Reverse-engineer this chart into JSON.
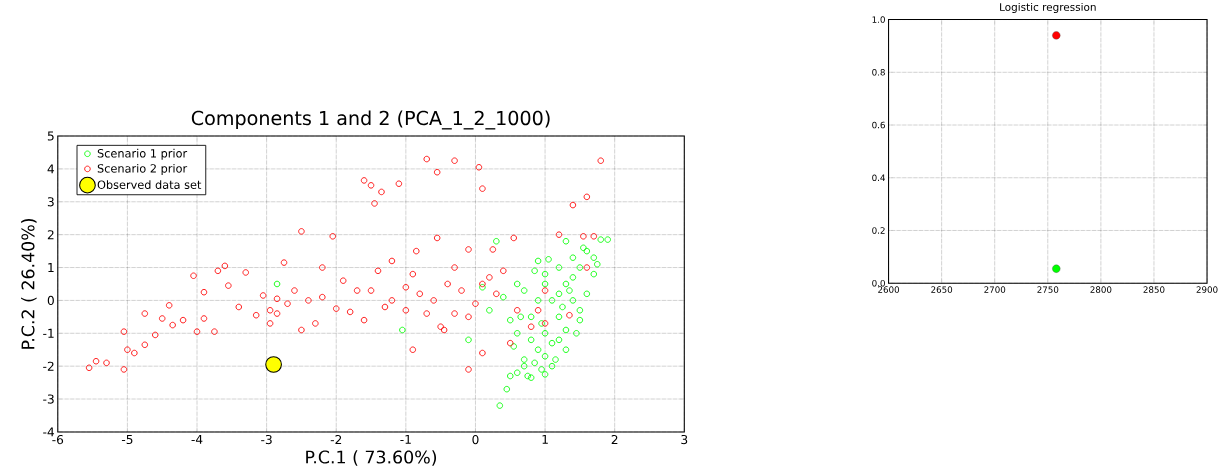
{
  "chart_data": [
    {
      "type": "scatter",
      "title": "Components 1 and 2 (PCA_1_2_1000)",
      "xlabel": "P.C.1 (   73.60%)",
      "ylabel": "P.C.2 (   26.40%)",
      "xlim": [
        -6,
        3
      ],
      "xticks": [
        -6,
        -5,
        -4,
        -3,
        -2,
        -1,
        0,
        1,
        2,
        3
      ],
      "ylim": [
        -4,
        5
      ],
      "yticks": [
        -4,
        -3,
        -2,
        -1,
        0,
        1,
        2,
        3,
        4,
        5
      ],
      "grid": true,
      "legend": "top left",
      "marker": "circle",
      "series": [
        {
          "name": "Scenario 1 prior",
          "color": "#00ff00",
          "x": [
            0.35,
            0.45,
            0.5,
            0.6,
            0.8,
            1.0,
            1.1,
            0.7,
            0.6,
            0.8,
            0.9,
            1.0,
            1.2,
            1.4,
            1.6,
            1.9,
            1.8,
            1.7,
            1.5,
            1.3,
            1.6,
            1.5,
            1.3,
            1.1,
            1.2,
            1.0,
            0.9,
            0.8,
            1.1,
            1.2,
            1.0,
            0.7,
            0.5,
            0.4,
            0.2,
            -0.1,
            -1.05,
            -2.85,
            0.1,
            0.3,
            1.3,
            1.15,
            1.3,
            1.45,
            1.4,
            1.7,
            0.95,
            0.75,
            1.05,
            0.85,
            1.25,
            1.4,
            0.65,
            0.95,
            0.6,
            1.55,
            1.75,
            0.85,
            1.0,
            1.2,
            0.55,
            0.7,
            1.35,
            1.5,
            0.9
          ],
          "values": [
            -3.2,
            -2.7,
            -2.3,
            -2.2,
            -2.35,
            -2.25,
            -2.0,
            -1.8,
            -1.0,
            -0.5,
            0.0,
            0.5,
            1.0,
            1.3,
            1.5,
            1.85,
            1.85,
            1.3,
            1.0,
            0.5,
            0.2,
            -0.3,
            -0.9,
            -1.3,
            -0.5,
            -1.0,
            -1.5,
            -1.2,
            0.0,
            0.2,
            0.8,
            0.3,
            -0.6,
            0.1,
            -0.3,
            -1.2,
            -0.9,
            0.5,
            0.4,
            1.8,
            1.8,
            -1.8,
            -1.5,
            -1.0,
            0.7,
            0.8,
            -2.1,
            -2.3,
            1.25,
            0.9,
            -0.2,
            0.0,
            -0.5,
            -0.7,
            0.5,
            1.6,
            1.1,
            -1.9,
            -1.7,
            -1.2,
            -1.4,
            -2.0,
            0.3,
            -0.6,
            1.2
          ]
        },
        {
          "name": "Scenario 2 prior",
          "color": "#ff0000",
          "x": [
            -5.55,
            -5.45,
            -5.3,
            -5.05,
            -5.0,
            -5.05,
            -4.75,
            -4.75,
            -4.5,
            -4.35,
            -4.4,
            -4.05,
            -4.0,
            -3.9,
            -3.75,
            -3.7,
            -3.6,
            -3.55,
            -3.3,
            -3.15,
            -3.05,
            -2.95,
            -2.85,
            -2.85,
            -2.75,
            -2.5,
            -2.4,
            -2.3,
            -2.2,
            -2.05,
            -2.0,
            -1.8,
            -1.7,
            -1.6,
            -1.5,
            -1.45,
            -1.35,
            -1.1,
            -0.7,
            -0.85,
            -0.55,
            -0.55,
            -0.3,
            0.05,
            0.1,
            -0.1,
            0.25,
            0.55,
            -0.3,
            -0.5,
            -0.9,
            -0.45,
            -0.1,
            0.1,
            0.5,
            0.8,
            0.9,
            1.0,
            1.2,
            1.4,
            1.6,
            1.8,
            1.6,
            1.55,
            1.7,
            1.35,
            1.0,
            0.1,
            -1.0,
            -1.2,
            -0.8,
            -0.6,
            -0.2,
            0.3,
            -1.5,
            -1.3,
            -1.0,
            -2.6,
            -2.2,
            -3.4,
            -3.9,
            -4.6,
            -4.2,
            -4.9,
            -2.95,
            -2.5,
            -1.2,
            -0.3,
            0.4,
            0.6,
            -0.7,
            -0.1,
            -1.9,
            -1.6,
            -0.9,
            -0.4,
            0.0,
            0.2,
            -1.4,
            -2.7
          ],
          "values": [
            -2.05,
            -1.85,
            -1.9,
            -2.1,
            -1.5,
            -0.95,
            -1.35,
            -0.4,
            -0.55,
            -0.75,
            -0.15,
            0.75,
            -0.95,
            -0.55,
            -0.95,
            0.9,
            1.05,
            0.45,
            0.85,
            -0.45,
            0.15,
            -0.7,
            -0.4,
            0.05,
            1.15,
            2.1,
            0.0,
            -0.7,
            1.0,
            1.95,
            -0.25,
            -0.35,
            0.3,
            3.65,
            3.5,
            2.95,
            3.3,
            3.55,
            4.3,
            1.5,
            1.9,
            3.9,
            4.25,
            4.05,
            3.4,
            1.55,
            1.55,
            1.9,
            -0.4,
            -0.8,
            -1.5,
            -0.9,
            -2.1,
            -1.6,
            -1.3,
            -0.8,
            -0.3,
            0.3,
            2.0,
            2.9,
            3.15,
            4.25,
            1.0,
            1.95,
            1.95,
            -0.45,
            -0.7,
            0.5,
            0.4,
            0.0,
            0.2,
            0.0,
            0.3,
            0.2,
            0.3,
            -0.2,
            -0.3,
            0.3,
            0.1,
            -0.2,
            0.25,
            -1.05,
            -0.6,
            -1.6,
            -0.3,
            -0.9,
            1.2,
            1.0,
            0.9,
            -0.3,
            -0.4,
            -0.5,
            0.6,
            -0.6,
            0.8,
            0.5,
            -0.1,
            0.7,
            0.9,
            -0.1
          ]
        },
        {
          "name": "Observed data set",
          "color": "#ffff00",
          "x": [
            -2.9
          ],
          "values": [
            -1.95
          ]
        }
      ]
    },
    {
      "type": "scatter",
      "title": "Logistic regression",
      "xlim": [
        2600,
        2900
      ],
      "xticks": [
        2600,
        2650,
        2700,
        2750,
        2800,
        2850,
        2900
      ],
      "ylim": [
        0,
        1
      ],
      "yticks": [
        {
          "value": 0,
          "label": "0.0"
        },
        {
          "value": 0.2,
          "label": "0.2"
        },
        {
          "value": 0.4,
          "label": "0.4"
        },
        {
          "value": 0.6,
          "label": "0.6"
        },
        {
          "value": 0.8,
          "label": "0.8"
        },
        {
          "value": 1,
          "label": "1.0"
        }
      ],
      "grid": true,
      "marker": "circle",
      "series": [
        {
          "color": "#ff0000",
          "x": [
            2758
          ],
          "values": [
            0.94
          ]
        },
        {
          "color": "#00ff00",
          "x": [
            2758
          ],
          "values": [
            0.055
          ]
        }
      ]
    }
  ]
}
